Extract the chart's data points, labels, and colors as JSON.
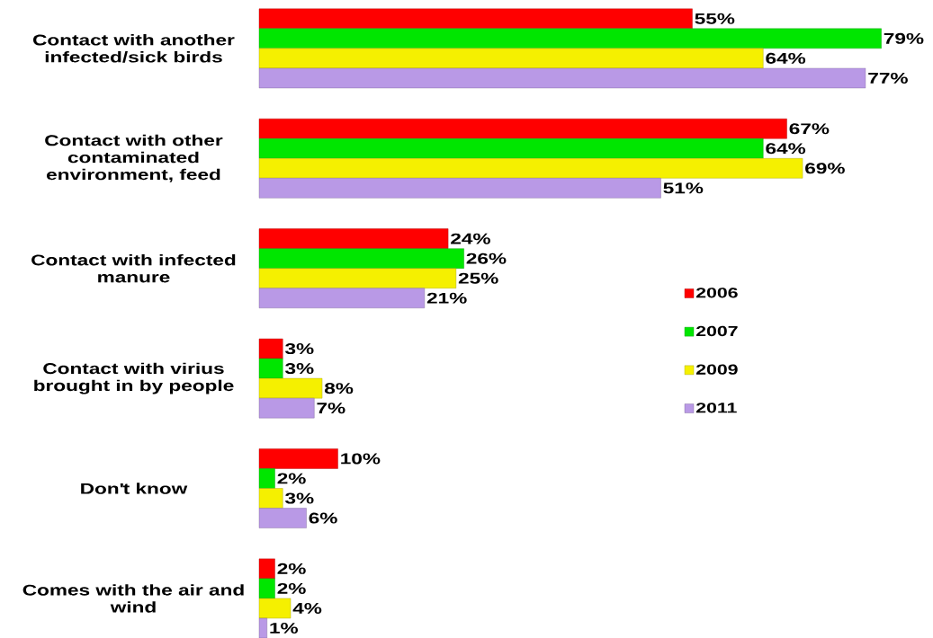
{
  "chart_data": {
    "type": "bar",
    "orientation": "horizontal",
    "tick_labels": "y",
    "legend": "right",
    "categories": [
      "Contact with another infected/sick birds",
      "Contact with other contaminated environment, feed",
      "Contact with infected manure",
      "Contact with virius brought in by people",
      "Don't know",
      "Comes with the air and wind"
    ],
    "series": [
      {
        "name": "2006",
        "color": "#ff0000",
        "values": [
          55,
          67,
          24,
          3,
          10,
          2
        ],
        "value_labels": [
          "55%",
          "67%",
          "24%",
          "3%",
          "10%",
          "2%"
        ]
      },
      {
        "name": "2007",
        "color": "#00e600",
        "values": [
          79,
          64,
          26,
          3,
          2,
          2
        ],
        "value_labels": [
          "79%",
          "64%",
          "26%",
          "3%",
          "2%",
          "2%"
        ]
      },
      {
        "name": "2009",
        "color": "#f5f000",
        "values": [
          64,
          69,
          25,
          8,
          3,
          4
        ],
        "value_labels": [
          "64%",
          "69%",
          "25%",
          "8%",
          "3%",
          "4%"
        ]
      },
      {
        "name": "2011",
        "color": "#b999e6",
        "values": [
          77,
          51,
          21,
          7,
          6,
          1
        ],
        "value_labels": [
          "77%",
          "51%",
          "21%",
          "7%",
          "6%",
          "1%"
        ]
      }
    ]
  }
}
